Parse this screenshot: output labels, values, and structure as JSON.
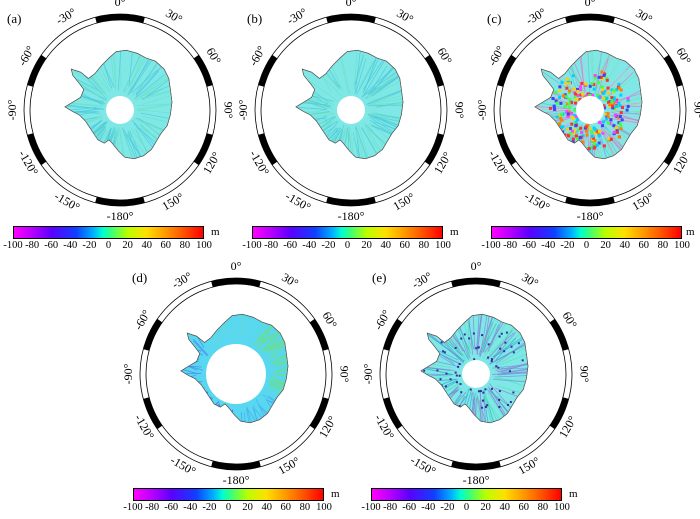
{
  "panels": [
    {
      "label": "(a)",
      "style": "smooth"
    },
    {
      "label": "(b)",
      "style": "smooth"
    },
    {
      "label": "(c)",
      "style": "noisy"
    },
    {
      "label": "(d)",
      "style": "gradient"
    },
    {
      "label": "(e)",
      "style": "streaky"
    }
  ],
  "longitude_labels": [
    "0°",
    "30°",
    "60°",
    "90°",
    "120°",
    "150°",
    "-180°",
    "-150°",
    "-120°",
    "-90°",
    "-60°",
    "-30°"
  ],
  "colorbar": {
    "unit": "m",
    "ticks": [
      "-100",
      "-80",
      "-60",
      "-40",
      "-20",
      "0",
      "20",
      "40",
      "60",
      "80",
      "100"
    ],
    "colors": [
      "#ff00ff",
      "#5a00ff",
      "#00b0ff",
      "#00ffd0",
      "#40ff70",
      "#ffe000",
      "#ff0000"
    ]
  }
}
